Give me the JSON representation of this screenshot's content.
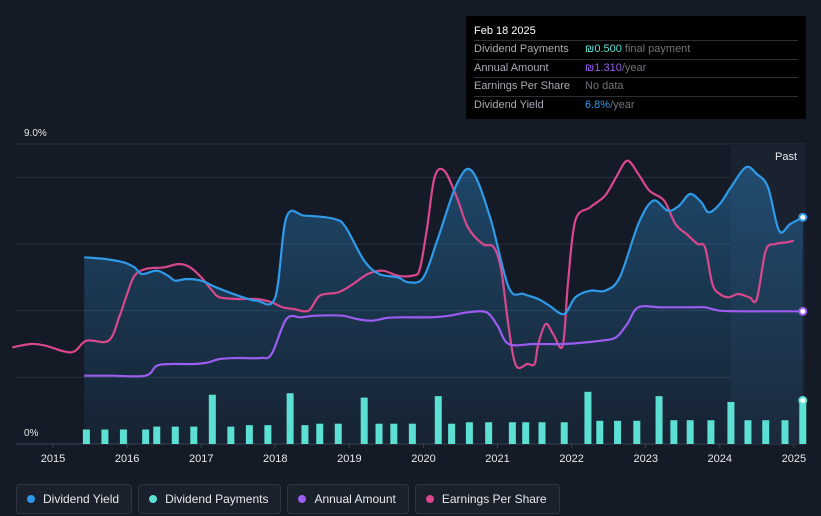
{
  "colors": {
    "background": "#151b26",
    "yield": "#2e9ae8",
    "payments": "#5ce0d4",
    "annual": "#9b5cf0",
    "eps": "#d9488c",
    "grid": "#2a313d",
    "future_band": "#1a2230"
  },
  "tooltip": {
    "date": "Feb 18 2025",
    "rows": [
      {
        "label": "Dividend Payments",
        "value": "₪0.500",
        "suffix": " final payment",
        "color": "#5ce0d4"
      },
      {
        "label": "Annual Amount",
        "value": "₪1.310",
        "suffix": "/year",
        "color": "#9b5cf0"
      },
      {
        "label": "Earnings Per Share",
        "value": "No data",
        "suffix": "",
        "color": "#6f737a"
      },
      {
        "label": "Dividend Yield",
        "value": "6.8%",
        "suffix": "/year",
        "color": "#2e9ae8"
      }
    ]
  },
  "chart_data": {
    "type": "line",
    "ylabel_top": "9.0%",
    "ylabel_bottom": "0%",
    "ylim": [
      0,
      9
    ],
    "xlim": [
      2014.5,
      2025.15
    ],
    "x_ticks": [
      "2015",
      "2016",
      "2017",
      "2018",
      "2019",
      "2020",
      "2021",
      "2022",
      "2023",
      "2024",
      "2025"
    ],
    "past_label": "Past",
    "past_band_start": 2024.15,
    "series": [
      {
        "name": "Dividend Yield",
        "key": "yield",
        "unit": "%",
        "points": [
          [
            2015.42,
            5.6
          ],
          [
            2015.7,
            5.55
          ],
          [
            2015.95,
            5.45
          ],
          [
            2016.1,
            5.3
          ],
          [
            2016.2,
            5.1
          ],
          [
            2016.4,
            5.2
          ],
          [
            2016.55,
            5.05
          ],
          [
            2016.65,
            4.9
          ],
          [
            2016.8,
            4.95
          ],
          [
            2017.0,
            4.9
          ],
          [
            2017.2,
            4.7
          ],
          [
            2017.5,
            4.45
          ],
          [
            2017.75,
            4.3
          ],
          [
            2018.0,
            4.4
          ],
          [
            2018.15,
            6.8
          ],
          [
            2018.4,
            6.85
          ],
          [
            2018.8,
            6.75
          ],
          [
            2018.95,
            6.5
          ],
          [
            2019.2,
            5.5
          ],
          [
            2019.4,
            5.1
          ],
          [
            2019.65,
            5.0
          ],
          [
            2019.8,
            4.85
          ],
          [
            2020.0,
            5.0
          ],
          [
            2020.2,
            6.2
          ],
          [
            2020.45,
            7.8
          ],
          [
            2020.65,
            8.2
          ],
          [
            2020.9,
            6.8
          ],
          [
            2021.15,
            4.7
          ],
          [
            2021.35,
            4.5
          ],
          [
            2021.55,
            4.35
          ],
          [
            2021.7,
            4.15
          ],
          [
            2021.9,
            3.9
          ],
          [
            2022.05,
            4.4
          ],
          [
            2022.25,
            4.6
          ],
          [
            2022.45,
            4.6
          ],
          [
            2022.65,
            5.0
          ],
          [
            2022.9,
            6.6
          ],
          [
            2023.1,
            7.3
          ],
          [
            2023.3,
            7.0
          ],
          [
            2023.45,
            7.15
          ],
          [
            2023.6,
            7.5
          ],
          [
            2023.75,
            7.25
          ],
          [
            2023.85,
            6.95
          ],
          [
            2024.0,
            7.2
          ],
          [
            2024.15,
            7.7
          ],
          [
            2024.35,
            8.3
          ],
          [
            2024.5,
            8.1
          ],
          [
            2024.65,
            7.7
          ],
          [
            2024.8,
            6.4
          ],
          [
            2024.95,
            6.6
          ],
          [
            2025.12,
            6.8
          ]
        ]
      },
      {
        "name": "Annual Amount",
        "key": "annual",
        "unit": "₪",
        "points": [
          [
            2015.42,
            2.05
          ],
          [
            2015.8,
            2.05
          ],
          [
            2016.25,
            2.05
          ],
          [
            2016.4,
            2.35
          ],
          [
            2016.6,
            2.4
          ],
          [
            2016.9,
            2.4
          ],
          [
            2017.1,
            2.45
          ],
          [
            2017.25,
            2.55
          ],
          [
            2017.5,
            2.58
          ],
          [
            2017.8,
            2.58
          ],
          [
            2017.95,
            2.7
          ],
          [
            2018.15,
            3.75
          ],
          [
            2018.35,
            3.8
          ],
          [
            2018.55,
            3.85
          ],
          [
            2018.9,
            3.85
          ],
          [
            2019.1,
            3.75
          ],
          [
            2019.3,
            3.7
          ],
          [
            2019.5,
            3.78
          ],
          [
            2019.7,
            3.8
          ],
          [
            2020.1,
            3.8
          ],
          [
            2020.35,
            3.85
          ],
          [
            2020.6,
            3.95
          ],
          [
            2020.85,
            3.95
          ],
          [
            2021.0,
            3.55
          ],
          [
            2021.15,
            3.0
          ],
          [
            2021.5,
            3.0
          ],
          [
            2021.9,
            3.0
          ],
          [
            2022.2,
            3.05
          ],
          [
            2022.4,
            3.1
          ],
          [
            2022.6,
            3.2
          ],
          [
            2022.75,
            3.6
          ],
          [
            2022.9,
            4.1
          ],
          [
            2023.2,
            4.1
          ],
          [
            2023.6,
            4.1
          ],
          [
            2023.8,
            4.1
          ],
          [
            2024.0,
            4.0
          ],
          [
            2024.3,
            3.98
          ],
          [
            2024.7,
            3.98
          ],
          [
            2025.12,
            3.98
          ]
        ]
      },
      {
        "name": "Earnings Per Share",
        "key": "eps",
        "unit": "₪",
        "points": [
          [
            2014.45,
            2.9
          ],
          [
            2014.7,
            3.0
          ],
          [
            2014.9,
            2.95
          ],
          [
            2015.25,
            2.75
          ],
          [
            2015.45,
            3.1
          ],
          [
            2015.75,
            3.1
          ],
          [
            2015.9,
            3.85
          ],
          [
            2016.0,
            4.5
          ],
          [
            2016.1,
            5.05
          ],
          [
            2016.25,
            5.25
          ],
          [
            2016.5,
            5.3
          ],
          [
            2016.7,
            5.4
          ],
          [
            2016.85,
            5.3
          ],
          [
            2017.0,
            5.0
          ],
          [
            2017.15,
            4.6
          ],
          [
            2017.25,
            4.4
          ],
          [
            2017.5,
            4.35
          ],
          [
            2017.75,
            4.35
          ],
          [
            2017.95,
            4.25
          ],
          [
            2018.1,
            4.1
          ],
          [
            2018.25,
            4.05
          ],
          [
            2018.45,
            4.0
          ],
          [
            2018.6,
            4.45
          ],
          [
            2018.85,
            4.55
          ],
          [
            2019.05,
            4.8
          ],
          [
            2019.25,
            5.1
          ],
          [
            2019.45,
            5.2
          ],
          [
            2019.65,
            5.05
          ],
          [
            2019.85,
            5.05
          ],
          [
            2019.95,
            5.25
          ],
          [
            2020.05,
            6.5
          ],
          [
            2020.15,
            8.0
          ],
          [
            2020.28,
            8.2
          ],
          [
            2020.45,
            7.4
          ],
          [
            2020.6,
            6.5
          ],
          [
            2020.8,
            6.0
          ],
          [
            2020.95,
            5.9
          ],
          [
            2021.05,
            5.2
          ],
          [
            2021.15,
            3.5
          ],
          [
            2021.25,
            2.35
          ],
          [
            2021.4,
            2.4
          ],
          [
            2021.5,
            2.4
          ],
          [
            2021.55,
            3.0
          ],
          [
            2021.65,
            3.6
          ],
          [
            2021.75,
            3.3
          ],
          [
            2021.88,
            2.95
          ],
          [
            2021.95,
            4.8
          ],
          [
            2022.05,
            6.7
          ],
          [
            2022.25,
            7.1
          ],
          [
            2022.45,
            7.45
          ],
          [
            2022.6,
            8.0
          ],
          [
            2022.75,
            8.5
          ],
          [
            2022.9,
            8.1
          ],
          [
            2023.05,
            7.6
          ],
          [
            2023.25,
            7.3
          ],
          [
            2023.4,
            6.6
          ],
          [
            2023.55,
            6.3
          ],
          [
            2023.7,
            6.0
          ],
          [
            2023.8,
            5.9
          ],
          [
            2023.9,
            4.8
          ],
          [
            2024.0,
            4.5
          ],
          [
            2024.12,
            4.4
          ],
          [
            2024.25,
            4.5
          ],
          [
            2024.4,
            4.4
          ],
          [
            2024.5,
            4.35
          ],
          [
            2024.62,
            5.8
          ],
          [
            2024.75,
            6.0
          ],
          [
            2024.9,
            6.05
          ],
          [
            2025.0,
            6.1
          ]
        ]
      }
    ],
    "payments": {
      "name": "Dividend Payments",
      "bars": [
        [
          2015.45,
          0.5
        ],
        [
          2015.7,
          0.5
        ],
        [
          2015.95,
          0.5
        ],
        [
          2016.25,
          0.5
        ],
        [
          2016.4,
          0.6
        ],
        [
          2016.65,
          0.6
        ],
        [
          2016.9,
          0.6
        ],
        [
          2017.15,
          1.7
        ],
        [
          2017.4,
          0.6
        ],
        [
          2017.65,
          0.65
        ],
        [
          2017.9,
          0.65
        ],
        [
          2018.2,
          1.75
        ],
        [
          2018.4,
          0.65
        ],
        [
          2018.6,
          0.7
        ],
        [
          2018.85,
          0.7
        ],
        [
          2019.2,
          1.6
        ],
        [
          2019.4,
          0.7
        ],
        [
          2019.6,
          0.7
        ],
        [
          2019.85,
          0.7
        ],
        [
          2020.2,
          1.65
        ],
        [
          2020.38,
          0.7
        ],
        [
          2020.62,
          0.75
        ],
        [
          2020.88,
          0.75
        ],
        [
          2021.2,
          0.75
        ],
        [
          2021.38,
          0.75
        ],
        [
          2021.6,
          0.75
        ],
        [
          2021.9,
          0.75
        ],
        [
          2022.22,
          1.8
        ],
        [
          2022.38,
          0.8
        ],
        [
          2022.62,
          0.8
        ],
        [
          2022.88,
          0.8
        ],
        [
          2023.18,
          1.65
        ],
        [
          2023.38,
          0.82
        ],
        [
          2023.6,
          0.82
        ],
        [
          2023.88,
          0.82
        ],
        [
          2024.15,
          1.45
        ],
        [
          2024.38,
          0.82
        ],
        [
          2024.62,
          0.82
        ],
        [
          2024.88,
          0.82
        ],
        [
          2025.12,
          1.5
        ]
      ]
    }
  },
  "legend": [
    {
      "label": "Dividend Yield",
      "color": "#2e9ae8"
    },
    {
      "label": "Dividend Payments",
      "color": "#5ce0d4"
    },
    {
      "label": "Annual Amount",
      "color": "#9b5cf0"
    },
    {
      "label": "Earnings Per Share",
      "color": "#d9488c"
    }
  ]
}
